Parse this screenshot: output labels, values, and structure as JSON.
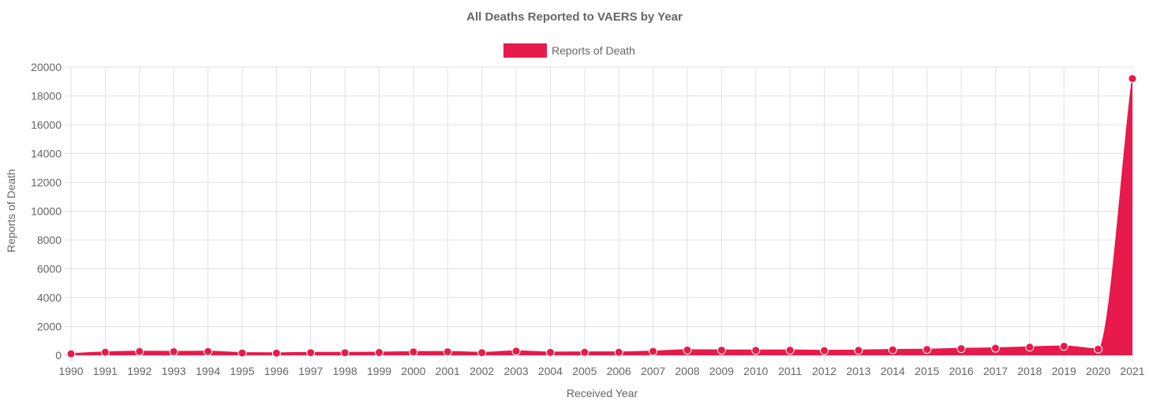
{
  "chart_data": {
    "type": "area",
    "title": "All Deaths Reported to VAERS by Year",
    "xlabel": "Received Year",
    "ylabel": "Reports of Death",
    "x": [
      "1990",
      "1991",
      "1992",
      "1993",
      "1994",
      "1995",
      "1996",
      "1997",
      "1998",
      "1999",
      "2000",
      "2001",
      "2002",
      "2003",
      "2004",
      "2005",
      "2006",
      "2007",
      "2008",
      "2009",
      "2010",
      "2011",
      "2012",
      "2013",
      "2014",
      "2015",
      "2016",
      "2017",
      "2018",
      "2019",
      "2020",
      "2021"
    ],
    "series": [
      {
        "name": "Reports of Death",
        "color": "#e8194b",
        "values": [
          100,
          210,
          260,
          250,
          260,
          160,
          150,
          180,
          175,
          190,
          230,
          240,
          180,
          290,
          200,
          210,
          210,
          270,
          360,
          350,
          340,
          350,
          320,
          340,
          380,
          400,
          460,
          490,
          560,
          620,
          420,
          19200
        ]
      }
    ],
    "ylim": [
      0,
      20000
    ],
    "yticks": [
      0,
      2000,
      4000,
      6000,
      8000,
      10000,
      12000,
      14000,
      16000,
      18000,
      20000
    ],
    "grid": true,
    "legend_position": "top-center"
  }
}
